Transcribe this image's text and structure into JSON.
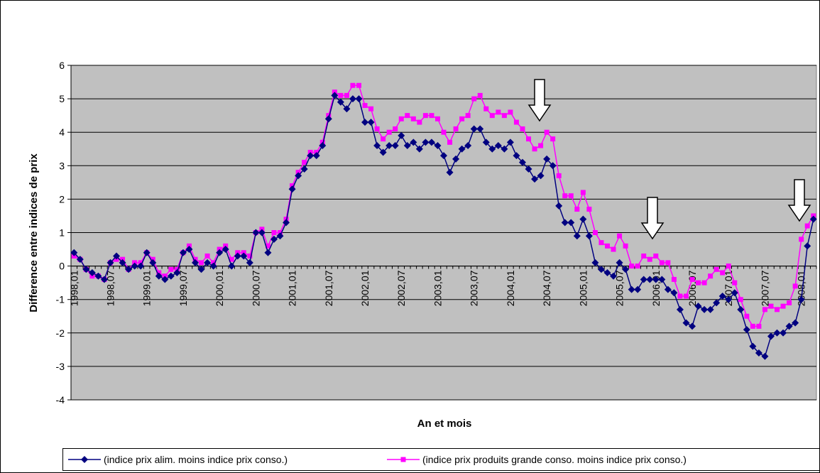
{
  "chart_data": {
    "type": "line",
    "xlabel": "An et mois",
    "ylabel": "Difference entre indices de prix",
    "categories": [
      "1998,01",
      null,
      null,
      null,
      null,
      null,
      "1998,07",
      null,
      null,
      null,
      null,
      null,
      "1999,01",
      null,
      null,
      null,
      null,
      null,
      "1999,07",
      null,
      null,
      null,
      null,
      null,
      "2000,01",
      null,
      null,
      null,
      null,
      null,
      "2000,07",
      null,
      null,
      null,
      null,
      null,
      "2001,01",
      null,
      null,
      null,
      null,
      null,
      "2001,07",
      null,
      null,
      null,
      null,
      null,
      "2002,01",
      null,
      null,
      null,
      null,
      null,
      "2002,07",
      null,
      null,
      null,
      null,
      null,
      "2003,01",
      null,
      null,
      null,
      null,
      null,
      "2003,07",
      null,
      null,
      null,
      null,
      null,
      "2004,01",
      null,
      null,
      null,
      null,
      null,
      "2004,07",
      null,
      null,
      null,
      null,
      null,
      "2005,01",
      null,
      null,
      null,
      null,
      null,
      "2005,07",
      null,
      null,
      null,
      null,
      null,
      "2006,01",
      null,
      null,
      null,
      null,
      null,
      "2006,07",
      null,
      null,
      null,
      null,
      null,
      "2007,01",
      null,
      null,
      null,
      null,
      null,
      "2007,07",
      null,
      null,
      null,
      null,
      null,
      "2008,01",
      null,
      null
    ],
    "series": [
      {
        "name": "(indice prix alim. moins indice prix conso.)",
        "color": "#000080",
        "marker": "diamond",
        "values": [
          0.4,
          0.2,
          -0.1,
          -0.2,
          -0.3,
          -0.4,
          0.1,
          0.3,
          0.1,
          -0.1,
          0.0,
          0.0,
          0.4,
          0.1,
          -0.3,
          -0.4,
          -0.3,
          -0.2,
          0.4,
          0.5,
          0.1,
          -0.1,
          0.1,
          0.0,
          0.4,
          0.5,
          0.0,
          0.3,
          0.3,
          0.1,
          1.0,
          1.0,
          0.4,
          0.8,
          0.9,
          1.3,
          2.3,
          2.7,
          2.9,
          3.3,
          3.3,
          3.6,
          4.4,
          5.1,
          4.9,
          4.7,
          5.0,
          5.0,
          4.3,
          4.3,
          3.6,
          3.4,
          3.6,
          3.6,
          3.9,
          3.6,
          3.7,
          3.5,
          3.7,
          3.7,
          3.6,
          3.3,
          2.8,
          3.2,
          3.5,
          3.6,
          4.1,
          4.1,
          3.7,
          3.5,
          3.6,
          3.5,
          3.7,
          3.3,
          3.1,
          2.9,
          2.6,
          2.7,
          3.2,
          3.0,
          1.8,
          1.3,
          1.3,
          0.9,
          1.4,
          0.9,
          0.1,
          -0.1,
          -0.2,
          -0.3,
          0.1,
          -0.1,
          -0.7,
          -0.7,
          -0.4,
          -0.4,
          -0.4,
          -0.4,
          -0.7,
          -0.8,
          -1.3,
          -1.7,
          -1.8,
          -1.2,
          -1.3,
          -1.3,
          -1.1,
          -0.9,
          -1.0,
          -0.8,
          -1.3,
          -1.9,
          -2.4,
          -2.6,
          -2.7,
          -2.1,
          -2.0,
          -2.0,
          -1.8,
          -1.7,
          -1.0,
          0.6,
          1.4
        ]
      },
      {
        "name": "(indice prix produits grande conso. moins indice prix conso.)",
        "color": "#ff00ff",
        "marker": "square",
        "values": [
          0.3,
          0.2,
          -0.1,
          -0.3,
          -0.3,
          -0.4,
          0.1,
          0.2,
          0.2,
          -0.1,
          0.1,
          0.1,
          0.4,
          0.2,
          -0.2,
          -0.3,
          -0.1,
          -0.1,
          0.4,
          0.6,
          0.2,
          0.1,
          0.3,
          0.1,
          0.5,
          0.6,
          0.2,
          0.4,
          0.4,
          0.3,
          1.0,
          1.1,
          0.6,
          1.0,
          1.0,
          1.4,
          2.4,
          2.8,
          3.1,
          3.4,
          3.4,
          3.7,
          4.5,
          5.2,
          5.1,
          5.1,
          5.4,
          5.4,
          4.8,
          4.7,
          4.1,
          3.8,
          4.0,
          4.1,
          4.4,
          4.5,
          4.4,
          4.3,
          4.5,
          4.5,
          4.4,
          4.0,
          3.7,
          4.1,
          4.4,
          4.5,
          5.0,
          5.1,
          4.7,
          4.5,
          4.6,
          4.5,
          4.6,
          4.3,
          4.1,
          3.8,
          3.5,
          3.6,
          4.0,
          3.8,
          2.7,
          2.1,
          2.1,
          1.7,
          2.2,
          1.7,
          1.0,
          0.7,
          0.6,
          0.5,
          0.9,
          0.6,
          0.0,
          0.0,
          0.3,
          0.2,
          0.3,
          0.1,
          0.1,
          -0.4,
          -0.9,
          -0.9,
          -0.4,
          -0.5,
          -0.5,
          -0.3,
          -0.1,
          -0.2,
          0.0,
          -0.5,
          -1.0,
          -1.5,
          -1.8,
          -1.8,
          -1.3,
          -1.2,
          -1.3,
          -1.2,
          -1.1,
          -0.6,
          0.8,
          1.2,
          1.5
        ]
      }
    ],
    "ylim": [
      -4,
      6
    ],
    "yticks": [
      -4,
      -3,
      -2,
      -1,
      0,
      1,
      2,
      3,
      4,
      5,
      6
    ],
    "grid": true
  }
}
